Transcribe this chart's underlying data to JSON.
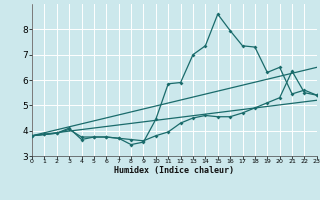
{
  "xlabel": "Humidex (Indice chaleur)",
  "bg_color": "#cce8ec",
  "line_color": "#1a6b6b",
  "grid_color": "#ffffff",
  "xlim": [
    0,
    23
  ],
  "ylim": [
    3.0,
    9.0
  ],
  "yticks": [
    3,
    4,
    5,
    6,
    7,
    8
  ],
  "xticks": [
    0,
    1,
    2,
    3,
    4,
    5,
    6,
    7,
    8,
    9,
    10,
    11,
    12,
    13,
    14,
    15,
    16,
    17,
    18,
    19,
    20,
    21,
    22,
    23
  ],
  "curve1_x": [
    0,
    1,
    2,
    3,
    4,
    5,
    6,
    7,
    8,
    9,
    10,
    11,
    12,
    13,
    14,
    15,
    16,
    17,
    18,
    19,
    20,
    21,
    22,
    23
  ],
  "curve1_y": [
    3.8,
    3.85,
    3.9,
    4.1,
    3.65,
    3.75,
    3.75,
    3.7,
    3.45,
    3.55,
    4.45,
    5.85,
    5.9,
    7.0,
    7.35,
    8.6,
    7.95,
    7.35,
    7.3,
    6.3,
    6.5,
    5.45,
    5.6,
    5.4
  ],
  "curve2_x": [
    0,
    1,
    2,
    3,
    4,
    5,
    6,
    7,
    8,
    9,
    10,
    11,
    12,
    13,
    14,
    15,
    16,
    17,
    18,
    19,
    20,
    21,
    22,
    23
  ],
  "curve2_y": [
    3.8,
    3.85,
    3.9,
    4.05,
    3.75,
    3.75,
    3.75,
    3.7,
    3.65,
    3.6,
    3.8,
    3.95,
    4.3,
    4.5,
    4.6,
    4.55,
    4.55,
    4.7,
    4.9,
    5.1,
    5.3,
    6.35,
    5.5,
    5.4
  ],
  "line1_x": [
    0,
    23
  ],
  "line1_y": [
    3.8,
    6.5
  ],
  "line2_x": [
    0,
    23
  ],
  "line2_y": [
    3.8,
    5.2
  ]
}
